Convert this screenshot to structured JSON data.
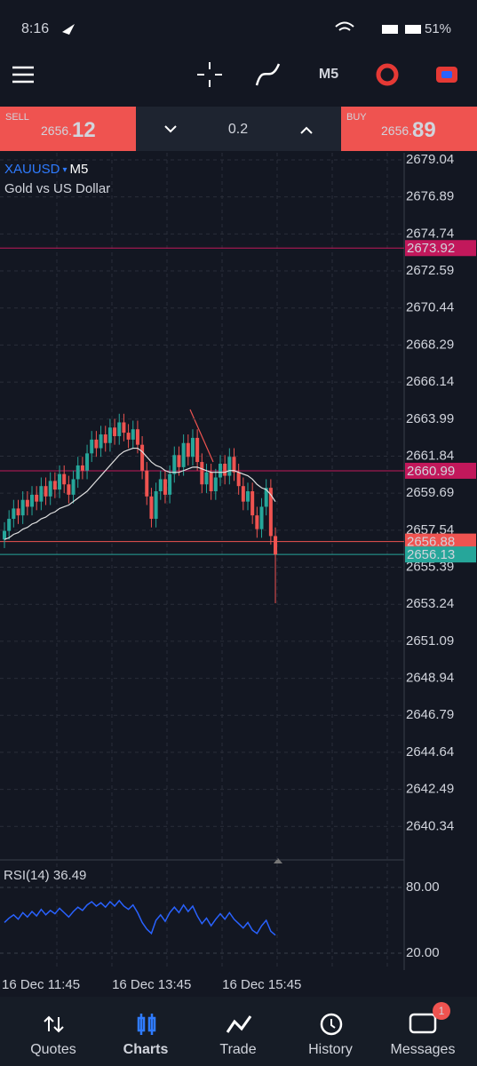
{
  "status_bar": {
    "time": "8:16",
    "battery": "51%"
  },
  "toolbar": {
    "timeframe": "M5"
  },
  "trade_bar": {
    "sell": {
      "label": "SELL",
      "price_main": "2656.",
      "price_big": "12"
    },
    "volume": "0.2",
    "buy": {
      "label": "BUY",
      "price_main": "2656.",
      "price_big": "89"
    }
  },
  "chart_data": {
    "type": "candlestick",
    "symbol": "XAUUSD",
    "timeframe": "M5",
    "description": "Gold vs US Dollar",
    "up_color": "#26a69a",
    "down_color": "#ef5350",
    "grid": true,
    "categories": [
      "16 Dec 11:45",
      null,
      null,
      null,
      null,
      null,
      null,
      null,
      null,
      null,
      null,
      null,
      null,
      null,
      null,
      null,
      null,
      null,
      null,
      null,
      null,
      null,
      null,
      null,
      "16 Dec 13:45",
      null,
      null,
      null,
      null,
      null,
      null,
      null,
      null,
      null,
      null,
      null,
      null,
      null,
      null,
      null,
      null,
      null,
      null,
      null,
      null,
      null,
      null,
      null,
      "16 Dec 15:45",
      null,
      null,
      null,
      null,
      null,
      null,
      null,
      null,
      null,
      null,
      null
    ],
    "open": [
      2657.0,
      2657.5,
      2658.2,
      2658.8,
      2658.4,
      2659.3,
      2658.9,
      2659.6,
      2659.2,
      2660.1,
      2659.5,
      2660.4,
      2659.9,
      2660.8,
      2660.2,
      2659.6,
      2660.5,
      2661.3,
      2661.0,
      2662.0,
      2662.8,
      2662.3,
      2663.1,
      2662.6,
      2663.5,
      2663.0,
      2663.8,
      2663.2,
      2662.8,
      2663.4,
      2662.5,
      2661.0,
      2659.5,
      2658.2,
      2659.8,
      2660.5,
      2659.6,
      2660.8,
      2661.9,
      2661.2,
      2662.6,
      2661.8,
      2662.9,
      2661.5,
      2660.2,
      2660.9,
      2659.8,
      2660.6,
      2661.4,
      2660.7,
      2661.8,
      2660.9,
      2660.1,
      2659.2,
      2659.8,
      2658.4,
      2657.6,
      2658.9,
      2660.0,
      2657.2
    ],
    "high": [
      2658.0,
      2658.7,
      2659.3,
      2659.3,
      2659.8,
      2659.8,
      2660.1,
      2660.1,
      2660.6,
      2660.6,
      2660.9,
      2660.9,
      2661.3,
      2661.3,
      2660.7,
      2661.0,
      2661.8,
      2661.8,
      2662.5,
      2663.3,
      2663.3,
      2663.6,
      2663.6,
      2664.0,
      2664.0,
      2664.3,
      2664.3,
      2663.7,
      2663.9,
      2663.9,
      2663.0,
      2661.5,
      2660.0,
      2660.3,
      2661.0,
      2661.0,
      2661.3,
      2662.4,
      2662.4,
      2663.1,
      2663.1,
      2663.4,
      2663.4,
      2662.0,
      2661.4,
      2661.4,
      2661.1,
      2661.9,
      2661.9,
      2662.3,
      2662.3,
      2661.4,
      2660.6,
      2660.3,
      2660.3,
      2658.9,
      2659.4,
      2660.5,
      2660.5,
      2657.7
    ],
    "low": [
      2656.5,
      2657.0,
      2657.7,
      2657.9,
      2657.9,
      2658.4,
      2658.4,
      2658.7,
      2658.7,
      2659.0,
      2659.0,
      2659.4,
      2659.4,
      2659.7,
      2659.1,
      2659.1,
      2660.0,
      2660.5,
      2660.5,
      2661.5,
      2661.8,
      2661.8,
      2662.1,
      2662.1,
      2662.5,
      2662.5,
      2662.7,
      2662.3,
      2662.3,
      2662.0,
      2660.5,
      2659.0,
      2657.7,
      2657.7,
      2659.3,
      2659.1,
      2659.1,
      2660.3,
      2660.7,
      2660.7,
      2661.3,
      2661.3,
      2661.0,
      2659.7,
      2659.7,
      2659.3,
      2659.3,
      2660.1,
      2660.2,
      2660.2,
      2660.4,
      2659.6,
      2658.7,
      2658.7,
      2657.9,
      2657.1,
      2657.1,
      2658.4,
      2656.7,
      2653.3
    ],
    "close": [
      2657.5,
      2658.2,
      2658.8,
      2658.4,
      2659.3,
      2658.9,
      2659.6,
      2659.2,
      2660.1,
      2659.5,
      2660.4,
      2659.9,
      2660.8,
      2660.2,
      2659.6,
      2660.5,
      2661.3,
      2661.0,
      2662.0,
      2662.8,
      2662.3,
      2663.1,
      2662.6,
      2663.5,
      2663.0,
      2663.8,
      2663.2,
      2662.8,
      2663.4,
      2662.5,
      2661.0,
      2659.5,
      2658.2,
      2659.8,
      2660.5,
      2659.6,
      2660.8,
      2661.9,
      2661.2,
      2662.6,
      2661.8,
      2662.9,
      2661.5,
      2660.2,
      2660.9,
      2659.8,
      2660.6,
      2661.4,
      2660.7,
      2661.8,
      2660.9,
      2660.1,
      2659.2,
      2659.8,
      2658.4,
      2657.6,
      2658.9,
      2660.0,
      2657.2,
      2656.13
    ],
    "ma": {
      "color": "#e0e0e0",
      "values": [
        2657.0,
        2657.1,
        2657.3,
        2657.4,
        2657.6,
        2657.7,
        2657.9,
        2658.0,
        2658.2,
        2658.3,
        2658.5,
        2658.6,
        2658.8,
        2658.9,
        2659.0,
        2659.2,
        2659.4,
        2659.6,
        2659.8,
        2660.1,
        2660.4,
        2660.7,
        2661.0,
        2661.3,
        2661.6,
        2661.9,
        2662.1,
        2662.2,
        2662.3,
        2662.3,
        2662.1,
        2661.8,
        2661.5,
        2661.3,
        2661.2,
        2661.0,
        2660.9,
        2660.9,
        2660.9,
        2661.0,
        2661.1,
        2661.2,
        2661.2,
        2661.1,
        2661.0,
        2660.9,
        2660.9,
        2660.9,
        2660.9,
        2661.0,
        2661.0,
        2660.9,
        2660.8,
        2660.7,
        2660.5,
        2660.2,
        2660.0,
        2659.9,
        2659.6,
        2659.2
      ]
    },
    "price_lines": [
      {
        "value": 2673.92,
        "color": "#c2185b"
      },
      {
        "value": 2660.99,
        "color": "#c2185b"
      },
      {
        "value": 2656.88,
        "color": "#ef5350"
      },
      {
        "value": 2656.13,
        "color": "#26a69a"
      }
    ],
    "ylim": [
      2638.55,
      2679.04
    ],
    "yticks": [
      2679.04,
      2676.89,
      2674.74,
      2672.59,
      2670.44,
      2668.29,
      2666.14,
      2663.99,
      2661.84,
      2659.69,
      2657.54,
      2655.39,
      2653.24,
      2651.09,
      2648.94,
      2646.79,
      2644.64,
      2642.49,
      2640.34
    ],
    "rsi": {
      "title": "RSI(14)",
      "current": 36.49,
      "color": "#2962ff",
      "ylim": [
        4.6,
        101.9
      ],
      "yticks": [
        {
          "value": 80,
          "label": "80.00"
        },
        {
          "value": 20,
          "label": "20.00"
        }
      ],
      "values": [
        48,
        52,
        55,
        51,
        57,
        53,
        58,
        54,
        60,
        55,
        59,
        56,
        61,
        57,
        53,
        58,
        62,
        59,
        64,
        67,
        63,
        66,
        62,
        67,
        63,
        68,
        63,
        60,
        64,
        57,
        48,
        42,
        38,
        50,
        55,
        49,
        57,
        62,
        57,
        64,
        58,
        63,
        54,
        47,
        52,
        45,
        51,
        56,
        51,
        57,
        51,
        47,
        43,
        48,
        41,
        38,
        45,
        50,
        40,
        36.49
      ]
    }
  },
  "bottom_nav": {
    "items": [
      "Quotes",
      "Charts",
      "Trade",
      "History",
      "Messages"
    ],
    "badge": "1"
  }
}
